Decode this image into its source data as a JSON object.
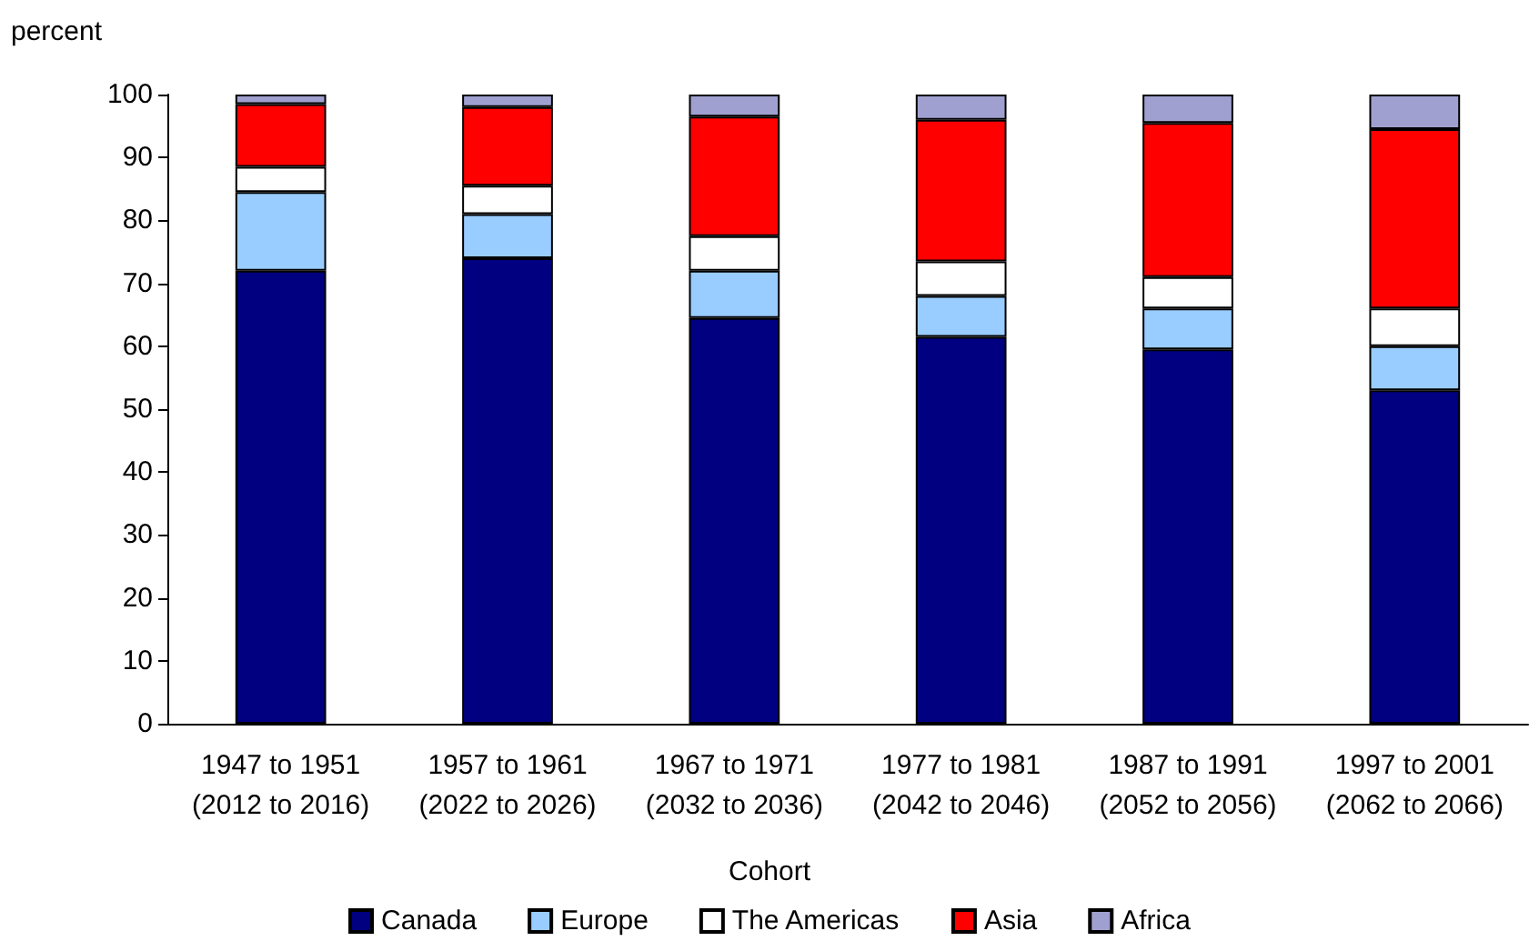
{
  "chart_data": {
    "type": "bar",
    "stacked": true,
    "ylabel": "percent",
    "xlabel": "Cohort",
    "categories": [
      "1947 to 1951\n(2012 to 2016)",
      "1957 to 1961\n(2022 to 2026)",
      "1967 to 1971\n(2032 to 2036)",
      "1977 to 1981\n(2042 to 2046)",
      "1987 to 1991\n(2052 to 2056)",
      "1997 to 2001\n(2062 to 2066)"
    ],
    "series": [
      {
        "name": "Canada",
        "color": "#000080",
        "values": [
          72,
          74,
          64.5,
          61.5,
          59.5,
          53
        ]
      },
      {
        "name": "Europe",
        "color": "#99ccff",
        "values": [
          12.5,
          7,
          7.5,
          6.5,
          6.5,
          7
        ]
      },
      {
        "name": "The Americas",
        "color": "#ffffff",
        "values": [
          4,
          4.5,
          5.5,
          5.5,
          5,
          6
        ]
      },
      {
        "name": "Asia",
        "color": "#ff0000",
        "values": [
          10,
          12.5,
          19,
          22.5,
          24.5,
          28.5
        ]
      },
      {
        "name": "Africa",
        "color": "#a0a0d0",
        "values": [
          1.5,
          2,
          3.5,
          4,
          4.5,
          5.5
        ]
      }
    ],
    "ylim": [
      0,
      100
    ],
    "yticks": [
      0,
      10,
      20,
      30,
      40,
      50,
      60,
      70,
      80,
      90,
      100
    ],
    "grid": false,
    "legend": "bottom"
  }
}
